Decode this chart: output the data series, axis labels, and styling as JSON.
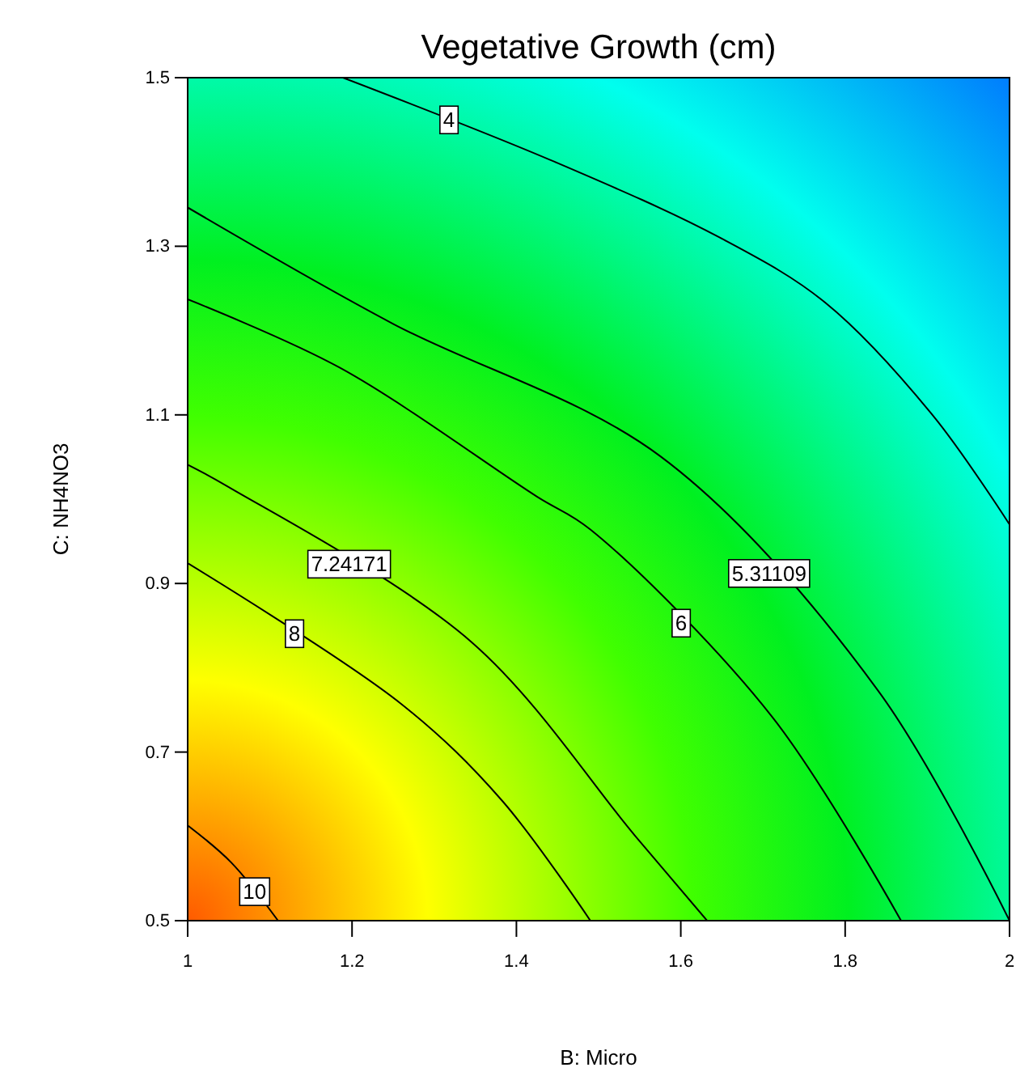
{
  "chart_data": {
    "type": "line",
    "title": "Vegetative Growth (cm)",
    "xlabel": "B: Micro",
    "ylabel": "C: NH4NO3",
    "xlim": [
      1,
      2
    ],
    "xticks": [
      1,
      1.2,
      1.4,
      1.6,
      1.8,
      2
    ],
    "ylim": [
      0.5,
      1.5
    ],
    "yticks": [
      0.5,
      0.7,
      0.9,
      1.1,
      1.3,
      1.5
    ],
    "series": [
      {
        "name": "4",
        "color": "#000000",
        "x": [
          1.189,
          1.447,
          1.648,
          1.776,
          1.907,
          2
        ],
        "values": [
          1.5,
          1.4,
          1.31,
          1.233,
          1.099,
          0.97
        ]
      },
      {
        "name": "5.31109",
        "color": "#000000",
        "x": [
          1,
          1.25,
          1.575,
          1.84,
          2
        ],
        "values": [
          1.346,
          1.208,
          1.051,
          0.773,
          0.5
        ]
      },
      {
        "name": "6",
        "color": "#000000",
        "x": [
          1,
          1.185,
          1.425,
          1.49,
          1.711,
          1.868
        ],
        "values": [
          1.237,
          1.156,
          1.003,
          0.964,
          0.742,
          0.5
        ]
      },
      {
        "name": "7.24171",
        "color": "#000000",
        "x": [
          1,
          1.047,
          1.346,
          1.545,
          1.632
        ],
        "values": [
          1.041,
          1.016,
          0.83,
          0.6,
          0.5
        ]
      },
      {
        "name": "8",
        "color": "#000000",
        "x": [
          1,
          1.26,
          1.382,
          1.49
        ],
        "values": [
          0.924,
          0.757,
          0.643,
          0.5
        ]
      },
      {
        "name": "10",
        "color": "#000000",
        "x": [
          1,
          1.053,
          1.11
        ],
        "values": [
          0.613,
          0.569,
          0.5
        ]
      }
    ]
  }
}
